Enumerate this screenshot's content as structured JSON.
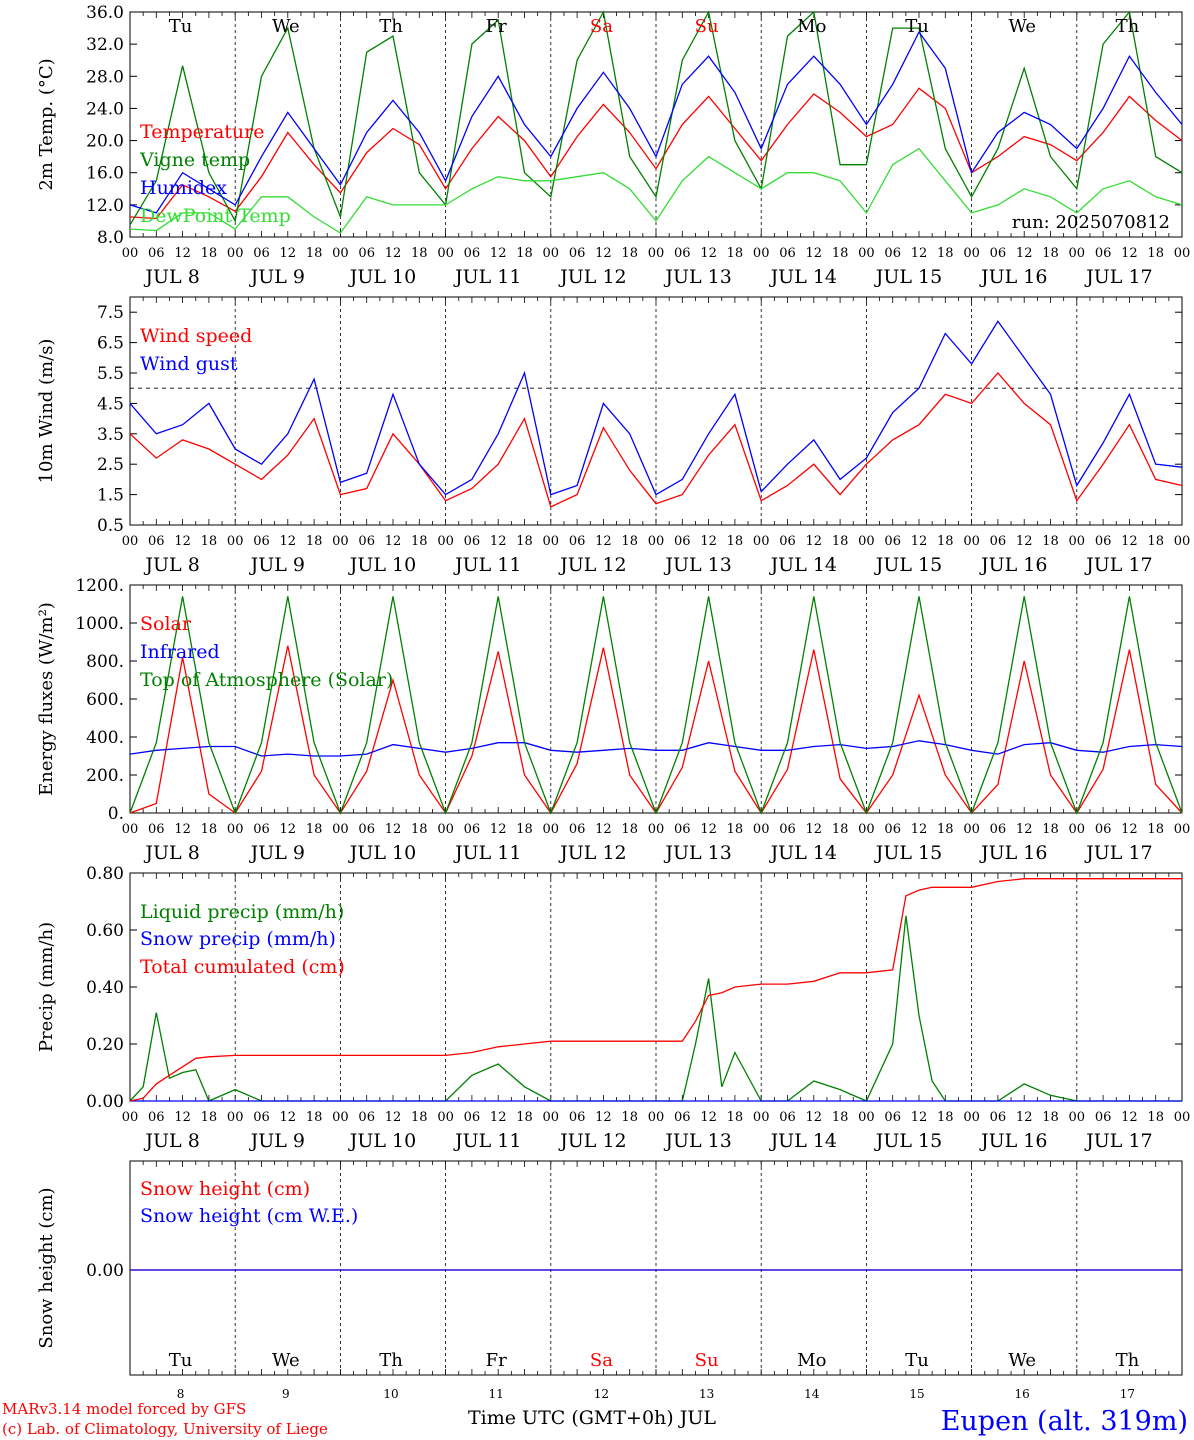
{
  "colors": {
    "temperature": "#ff0000",
    "vigne": "#008000",
    "humidex": "#0000ff",
    "dewpoint": "#33dd33",
    "wind_speed": "#ff0000",
    "wind_gust": "#0000ff",
    "solar": "#ff0000",
    "infrared": "#0000ff",
    "toa": "#008000",
    "liquid": "#008000",
    "snow_precip": "#0000ff",
    "cumulated": "#ff0000",
    "snow_cm": "#ff0000",
    "snow_we": "#0000ff",
    "station": "#0000ff",
    "credits": "#ff0000",
    "weekend_day": "#ff0000",
    "weekday": "#000000"
  },
  "header": {
    "run": "run: 2025070812"
  },
  "days": {
    "names": [
      "Tu",
      "We",
      "Th",
      "Fr",
      "Sa",
      "Su",
      "Mo",
      "Tu",
      "We",
      "Th"
    ],
    "weekend": [
      false,
      false,
      false,
      false,
      true,
      true,
      false,
      false,
      false,
      false
    ],
    "numbers": [
      "8",
      "9",
      "10",
      "11",
      "12",
      "13",
      "14",
      "15",
      "16",
      "17"
    ],
    "dates": [
      "JUL  8",
      "JUL  9",
      "JUL 10",
      "JUL 11",
      "JUL 12",
      "JUL 13",
      "JUL 14",
      "JUL 15",
      "JUL 16",
      "JUL 17"
    ],
    "hour_ticks": [
      "00",
      "06",
      "12",
      "18"
    ],
    "final_tick": "00"
  },
  "footer": {
    "model": "MARv3.14 model forced by GFS",
    "lab": "(c) Lab. of Climatology, University of Liege",
    "time_axis": "Time UTC (GMT+0h) JUL",
    "station": "Eupen (alt. 319m)"
  },
  "chart_data": [
    {
      "id": "temp",
      "type": "line",
      "ylabel": "2m Temp. (°C)",
      "ylim": [
        8,
        36
      ],
      "yticks": [
        "8.0",
        "12.0",
        "16.0",
        "20.0",
        "24.0",
        "28.0",
        "32.0",
        "36.0"
      ],
      "ytick_values": [
        8,
        12,
        16,
        20,
        24,
        28,
        32,
        36
      ],
      "x_hours": [
        0,
        6,
        12,
        18,
        24,
        30,
        36,
        42,
        48,
        54,
        60,
        66,
        72,
        78,
        84,
        90,
        96,
        102,
        108,
        114,
        120,
        126,
        132,
        138,
        144,
        150,
        156,
        162,
        168,
        174,
        180,
        186,
        192,
        198,
        204,
        210,
        216,
        222,
        228,
        234,
        240
      ],
      "series": [
        {
          "name": "Temperature",
          "color_key": "temperature",
          "values": [
            10.5,
            10.3,
            14.5,
            13,
            11.2,
            15.5,
            21,
            17,
            13.5,
            18.5,
            21.5,
            19.5,
            14,
            19,
            23,
            20,
            15.5,
            20.5,
            24.5,
            21,
            16.5,
            22,
            25.5,
            21.5,
            17.5,
            22,
            25.8,
            23.5,
            20.5,
            22,
            26.5,
            24,
            16,
            18,
            20.5,
            19.5,
            17.5,
            21,
            25.5,
            22.5,
            20
          ]
        },
        {
          "name": "Vigne temp",
          "color_key": "vigne",
          "values": [
            9.5,
            15,
            29.3,
            16,
            10,
            28,
            34,
            19,
            10.5,
            31,
            33,
            16,
            12,
            32,
            35,
            16,
            13,
            30,
            36,
            18,
            13,
            30,
            36,
            20,
            14,
            33,
            36,
            17,
            17,
            34,
            34,
            19,
            13,
            19,
            29,
            18,
            14,
            32,
            36,
            18,
            16
          ]
        },
        {
          "name": "Humidex",
          "color_key": "humidex",
          "values": [
            12,
            11,
            16,
            14,
            12,
            18,
            23.5,
            19,
            14.5,
            21,
            25,
            21,
            15,
            23,
            28,
            22,
            18,
            24,
            28.5,
            24,
            18,
            27,
            30.5,
            26,
            19,
            27,
            30.5,
            27,
            22,
            27,
            33.5,
            29,
            16,
            21,
            23.5,
            22,
            19,
            24,
            30.5,
            26,
            22
          ]
        },
        {
          "name": "DewPoint Temp",
          "color_key": "dewpoint",
          "values": [
            9,
            8.8,
            11,
            11,
            9,
            13,
            13,
            10.5,
            8.5,
            13,
            12,
            12,
            12,
            14,
            15.5,
            15,
            15,
            15.5,
            16,
            14,
            10,
            15,
            18,
            16,
            14,
            16,
            16,
            15,
            11,
            17,
            19,
            15,
            11,
            12,
            14,
            13,
            11,
            14,
            15,
            13,
            12
          ]
        }
      ],
      "legend": [
        "Temperature",
        "Vigne temp",
        "Humidex",
        "DewPoint Temp"
      ]
    },
    {
      "id": "wind",
      "type": "line",
      "ylabel": "10m Wind (m/s)",
      "ylim": [
        0.5,
        8
      ],
      "yticks": [
        "0.5",
        "1.5",
        "2.5",
        "3.5",
        "4.5",
        "5.5",
        "6.5",
        "7.5"
      ],
      "ytick_values": [
        0.5,
        1.5,
        2.5,
        3.5,
        4.5,
        5.5,
        6.5,
        7.5
      ],
      "reference_line": 5,
      "x_hours": [
        0,
        6,
        12,
        18,
        24,
        30,
        36,
        42,
        48,
        54,
        60,
        66,
        72,
        78,
        84,
        90,
        96,
        102,
        108,
        114,
        120,
        126,
        132,
        138,
        144,
        150,
        156,
        162,
        168,
        174,
        180,
        186,
        192,
        198,
        204,
        210,
        216,
        222,
        228,
        234,
        240
      ],
      "series": [
        {
          "name": "Wind speed",
          "color_key": "wind_speed",
          "values": [
            3.5,
            2.7,
            3.3,
            3,
            2.5,
            2,
            2.8,
            4,
            1.5,
            1.7,
            3.5,
            2.5,
            1.3,
            1.7,
            2.5,
            4,
            1.1,
            1.5,
            3.7,
            2.3,
            1.2,
            1.5,
            2.8,
            3.8,
            1.3,
            1.8,
            2.5,
            1.5,
            2.5,
            3.3,
            3.8,
            4.8,
            4.5,
            5.5,
            4.5,
            3.8,
            1.3,
            2.5,
            3.8,
            2,
            1.8
          ]
        },
        {
          "name": "Wind gust",
          "color_key": "wind_gust",
          "values": [
            4.5,
            3.5,
            3.8,
            4.5,
            3,
            2.5,
            3.5,
            5.3,
            1.9,
            2.2,
            4.8,
            2.5,
            1.5,
            2,
            3.5,
            5.5,
            1.5,
            1.8,
            4.5,
            3.5,
            1.5,
            2,
            3.5,
            4.8,
            1.6,
            2.5,
            3.3,
            2,
            2.7,
            4.2,
            5,
            6.8,
            5.8,
            7.2,
            6,
            4.8,
            1.8,
            3.2,
            4.8,
            2.5,
            2.4
          ]
        }
      ],
      "legend": [
        "Wind speed",
        "Wind gust"
      ]
    },
    {
      "id": "energy",
      "type": "line",
      "ylabel": "Energy fluxes (W/m²)",
      "ylim": [
        0,
        1200
      ],
      "yticks": [
        "0.",
        "200.",
        "400.",
        "600.",
        "800.",
        "1000.",
        "1200."
      ],
      "ytick_values": [
        0,
        200,
        400,
        600,
        800,
        1000,
        1200
      ],
      "x_hours": [
        0,
        6,
        12,
        18,
        24,
        30,
        36,
        42,
        48,
        54,
        60,
        66,
        72,
        78,
        84,
        90,
        96,
        102,
        108,
        114,
        120,
        126,
        132,
        138,
        144,
        150,
        156,
        162,
        168,
        174,
        180,
        186,
        192,
        198,
        204,
        210,
        216,
        222,
        228,
        234,
        240
      ],
      "series": [
        {
          "name": "Solar",
          "color_key": "solar",
          "values": [
            0,
            50,
            820,
            100,
            0,
            220,
            880,
            200,
            0,
            220,
            700,
            200,
            0,
            300,
            850,
            200,
            0,
            260,
            870,
            200,
            0,
            240,
            800,
            220,
            0,
            230,
            860,
            180,
            0,
            200,
            620,
            200,
            0,
            150,
            800,
            200,
            0,
            230,
            860,
            150,
            0
          ]
        },
        {
          "name": "Infrared",
          "color_key": "infrared",
          "values": [
            310,
            330,
            340,
            350,
            350,
            300,
            310,
            300,
            300,
            310,
            360,
            340,
            320,
            340,
            370,
            370,
            330,
            320,
            330,
            340,
            330,
            330,
            370,
            350,
            330,
            330,
            350,
            360,
            340,
            350,
            380,
            360,
            330,
            310,
            360,
            370,
            330,
            320,
            350,
            360,
            350
          ]
        },
        {
          "name": "Top of Atmosphere (Solar)",
          "color_key": "toa",
          "values": [
            0,
            370,
            1140,
            370,
            0,
            370,
            1140,
            370,
            0,
            370,
            1140,
            370,
            0,
            370,
            1140,
            370,
            0,
            370,
            1140,
            370,
            0,
            370,
            1140,
            370,
            0,
            370,
            1140,
            370,
            0,
            370,
            1140,
            370,
            0,
            370,
            1140,
            370,
            0,
            370,
            1140,
            370,
            0
          ]
        }
      ],
      "legend": [
        "Solar",
        "Infrared",
        "Top of Atmosphere (Solar)"
      ]
    },
    {
      "id": "precip",
      "type": "line",
      "ylabel": "Precip (mm/h)",
      "ylim": [
        0,
        0.8
      ],
      "yticks": [
        "0.00",
        "0.20",
        "0.40",
        "0.60",
        "0.80"
      ],
      "ytick_values": [
        0,
        0.2,
        0.4,
        0.6,
        0.8
      ],
      "x_hours": [
        0,
        3,
        6,
        9,
        12,
        15,
        18,
        24,
        30,
        36,
        42,
        48,
        54,
        60,
        66,
        72,
        78,
        84,
        90,
        96,
        102,
        108,
        114,
        120,
        126,
        129,
        132,
        135,
        138,
        144,
        150,
        156,
        162,
        168,
        174,
        177,
        180,
        183,
        186,
        192,
        198,
        204,
        210,
        216,
        222,
        228,
        234,
        240
      ],
      "series": [
        {
          "name": "Liquid precip (mm/h)",
          "color_key": "liquid",
          "values": [
            0,
            0.05,
            0.31,
            0.08,
            0.1,
            0.11,
            0,
            0.04,
            0,
            0,
            0,
            0,
            0,
            0,
            0,
            0,
            0.09,
            0.13,
            0.05,
            0,
            0,
            0,
            0,
            0,
            0,
            0.2,
            0.43,
            0.05,
            0.17,
            0,
            0,
            0.07,
            0.04,
            0,
            0.2,
            0.65,
            0.3,
            0.07,
            0,
            0,
            0,
            0.06,
            0.02,
            0,
            0,
            0,
            0,
            0
          ]
        },
        {
          "name": "Snow precip (mm/h)",
          "color_key": "snow_precip",
          "values": [
            0,
            0,
            0,
            0,
            0,
            0,
            0,
            0,
            0,
            0,
            0,
            0,
            0,
            0,
            0,
            0,
            0,
            0,
            0,
            0,
            0,
            0,
            0,
            0,
            0,
            0,
            0,
            0,
            0,
            0,
            0,
            0,
            0,
            0,
            0,
            0,
            0,
            0,
            0,
            0,
            0,
            0,
            0,
            0,
            0,
            0,
            0,
            0
          ]
        },
        {
          "name": "Total cumulated (cm)",
          "color_key": "cumulated",
          "values": [
            0,
            0.01,
            0.06,
            0.09,
            0.12,
            0.15,
            0.155,
            0.16,
            0.16,
            0.16,
            0.16,
            0.16,
            0.16,
            0.16,
            0.16,
            0.16,
            0.17,
            0.19,
            0.2,
            0.21,
            0.21,
            0.21,
            0.21,
            0.21,
            0.21,
            0.28,
            0.37,
            0.38,
            0.4,
            0.41,
            0.41,
            0.42,
            0.45,
            0.45,
            0.46,
            0.72,
            0.74,
            0.75,
            0.75,
            0.75,
            0.77,
            0.78,
            0.78,
            0.78,
            0.78,
            0.78,
            0.78,
            0.78
          ]
        }
      ],
      "legend": [
        "Liquid precip (mm/h)",
        "Snow precip (mm/h)",
        "Total cumulated (cm)"
      ]
    },
    {
      "id": "snow",
      "type": "line",
      "ylabel": "Snow height (cm)",
      "yticks": [
        "0.00"
      ],
      "x_hours": [
        0,
        240
      ],
      "series": [
        {
          "name": "Snow height (cm)",
          "color_key": "snow_cm",
          "values": [
            0,
            0
          ]
        },
        {
          "name": "Snow height (cm W.E.)",
          "color_key": "snow_we",
          "values": [
            0,
            0
          ]
        }
      ],
      "legend": [
        "Snow height (cm)",
        "Snow height (cm W.E.)"
      ]
    }
  ]
}
